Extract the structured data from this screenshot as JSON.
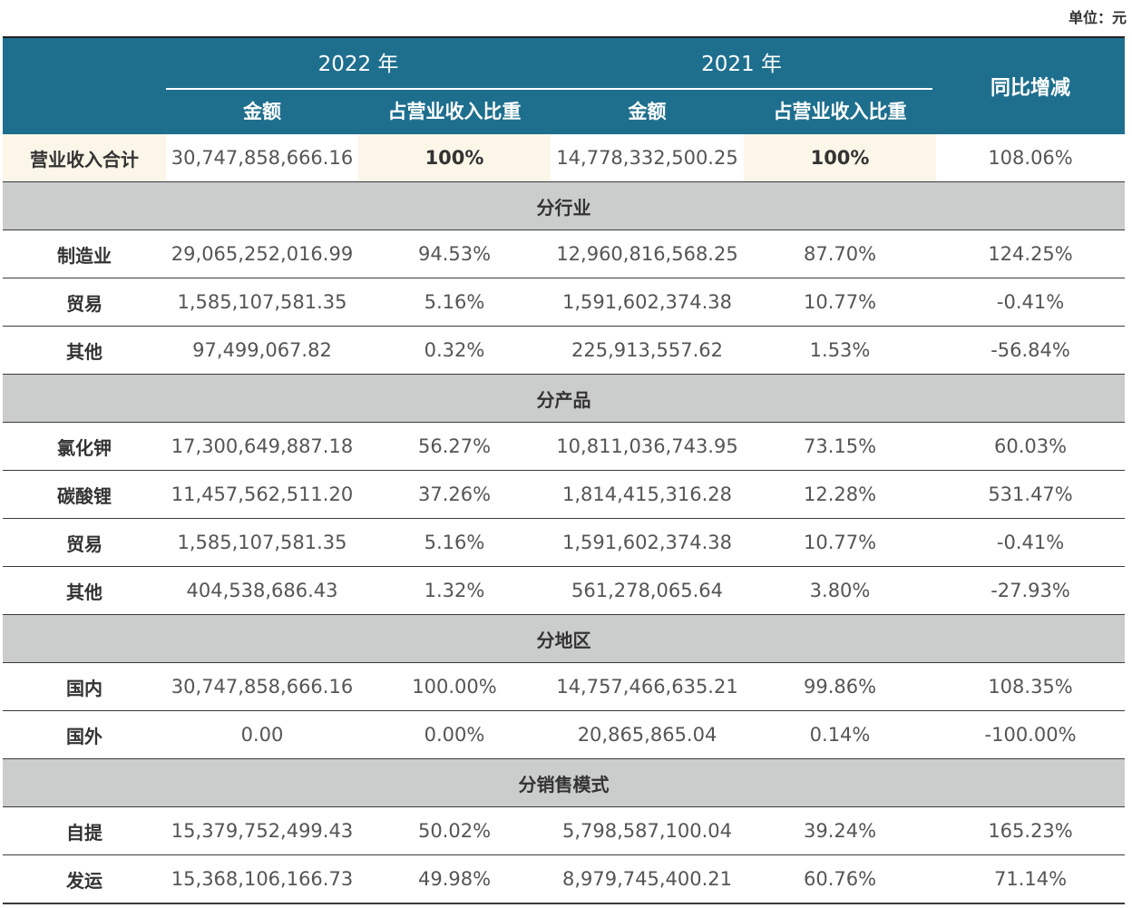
{
  "unit_label": "单位：元",
  "header": {
    "year_2022": "2022 年",
    "year_2021": "2021 年",
    "yoy": "同比增减",
    "amount": "金额",
    "ratio": "占营业收入比重"
  },
  "total": {
    "label": "营业收入合计",
    "amount_2022": "30,747,858,666.16",
    "ratio_2022": "100%",
    "amount_2021": "14,778,332,500.25",
    "ratio_2021": "100%",
    "yoy": "108.06%"
  },
  "sections": [
    {
      "title": "分行业",
      "rows": [
        {
          "label": "制造业",
          "amount_2022": "29,065,252,016.99",
          "ratio_2022": "94.53%",
          "amount_2021": "12,960,816,568.25",
          "ratio_2021": "87.70%",
          "yoy": "124.25%"
        },
        {
          "label": "贸易",
          "amount_2022": "1,585,107,581.35",
          "ratio_2022": "5.16%",
          "amount_2021": "1,591,602,374.38",
          "ratio_2021": "10.77%",
          "yoy": "-0.41%"
        },
        {
          "label": "其他",
          "amount_2022": "97,499,067.82",
          "ratio_2022": "0.32%",
          "amount_2021": "225,913,557.62",
          "ratio_2021": "1.53%",
          "yoy": "-56.84%"
        }
      ]
    },
    {
      "title": "分产品",
      "rows": [
        {
          "label": "氯化钾",
          "amount_2022": "17,300,649,887.18",
          "ratio_2022": "56.27%",
          "amount_2021": "10,811,036,743.95",
          "ratio_2021": "73.15%",
          "yoy": "60.03%"
        },
        {
          "label": "碳酸锂",
          "amount_2022": "11,457,562,511.20",
          "ratio_2022": "37.26%",
          "amount_2021": "1,814,415,316.28",
          "ratio_2021": "12.28%",
          "yoy": "531.47%"
        },
        {
          "label": "贸易",
          "amount_2022": "1,585,107,581.35",
          "ratio_2022": "5.16%",
          "amount_2021": "1,591,602,374.38",
          "ratio_2021": "10.77%",
          "yoy": "-0.41%"
        },
        {
          "label": "其他",
          "amount_2022": "404,538,686.43",
          "ratio_2022": "1.32%",
          "amount_2021": "561,278,065.64",
          "ratio_2021": "3.80%",
          "yoy": "-27.93%"
        }
      ]
    },
    {
      "title": "分地区",
      "rows": [
        {
          "label": "国内",
          "amount_2022": "30,747,858,666.16",
          "ratio_2022": "100.00%",
          "amount_2021": "14,757,466,635.21",
          "ratio_2021": "99.86%",
          "yoy": "108.35%"
        },
        {
          "label": "国外",
          "amount_2022": "0.00",
          "ratio_2022": "0.00%",
          "amount_2021": "20,865,865.04",
          "ratio_2021": "0.14%",
          "yoy": "-100.00%"
        }
      ]
    },
    {
      "title": "分销售模式",
      "rows": [
        {
          "label": "自提",
          "amount_2022": "15,379,752,499.43",
          "ratio_2022": "50.02%",
          "amount_2021": "5,798,587,100.04",
          "ratio_2021": "39.24%",
          "yoy": "165.23%"
        },
        {
          "label": "发运",
          "amount_2022": "15,368,106,166.73",
          "ratio_2022": "49.98%",
          "amount_2021": "8,979,745,400.21",
          "ratio_2021": "60.76%",
          "yoy": "71.14%"
        }
      ]
    }
  ]
}
